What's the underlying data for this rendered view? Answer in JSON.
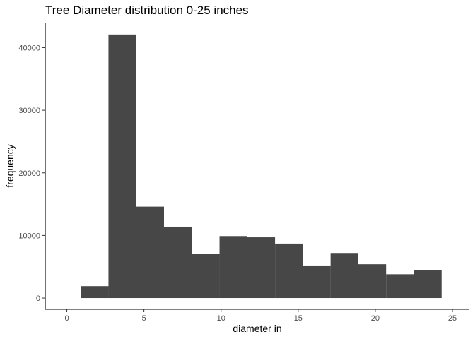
{
  "chart_data": {
    "type": "bar",
    "title": "Tree Diameter distribution 0-25 inches",
    "xlabel": "diameter in",
    "ylabel": "frequency",
    "xlim": [
      -1.4,
      26.1
    ],
    "ylim": [
      -1800,
      44000
    ],
    "x_ticks": [
      0,
      5,
      10,
      15,
      20,
      25
    ],
    "y_ticks": [
      0,
      10000,
      20000,
      30000,
      40000
    ],
    "x_tick_labels": [
      "0",
      "5",
      "10",
      "15",
      "20",
      "25"
    ],
    "y_tick_labels": [
      "0",
      "10000",
      "20000",
      "30000",
      "40000"
    ],
    "grid": false,
    "color": "#474747",
    "bins": [
      {
        "x0": 0.9,
        "x1": 2.7,
        "value": 1900
      },
      {
        "x0": 2.7,
        "x1": 4.5,
        "value": 42100
      },
      {
        "x0": 4.5,
        "x1": 6.3,
        "value": 14600
      },
      {
        "x0": 6.3,
        "x1": 8.1,
        "value": 11400
      },
      {
        "x0": 8.1,
        "x1": 9.9,
        "value": 7100
      },
      {
        "x0": 9.9,
        "x1": 11.7,
        "value": 9900
      },
      {
        "x0": 11.7,
        "x1": 13.5,
        "value": 9700
      },
      {
        "x0": 13.5,
        "x1": 15.3,
        "value": 8700
      },
      {
        "x0": 15.3,
        "x1": 17.1,
        "value": 5200
      },
      {
        "x0": 17.1,
        "x1": 18.9,
        "value": 7200
      },
      {
        "x0": 18.9,
        "x1": 20.7,
        "value": 5400
      },
      {
        "x0": 20.7,
        "x1": 22.5,
        "value": 3800
      },
      {
        "x0": 22.5,
        "x1": 24.3,
        "value": 4500
      }
    ]
  }
}
